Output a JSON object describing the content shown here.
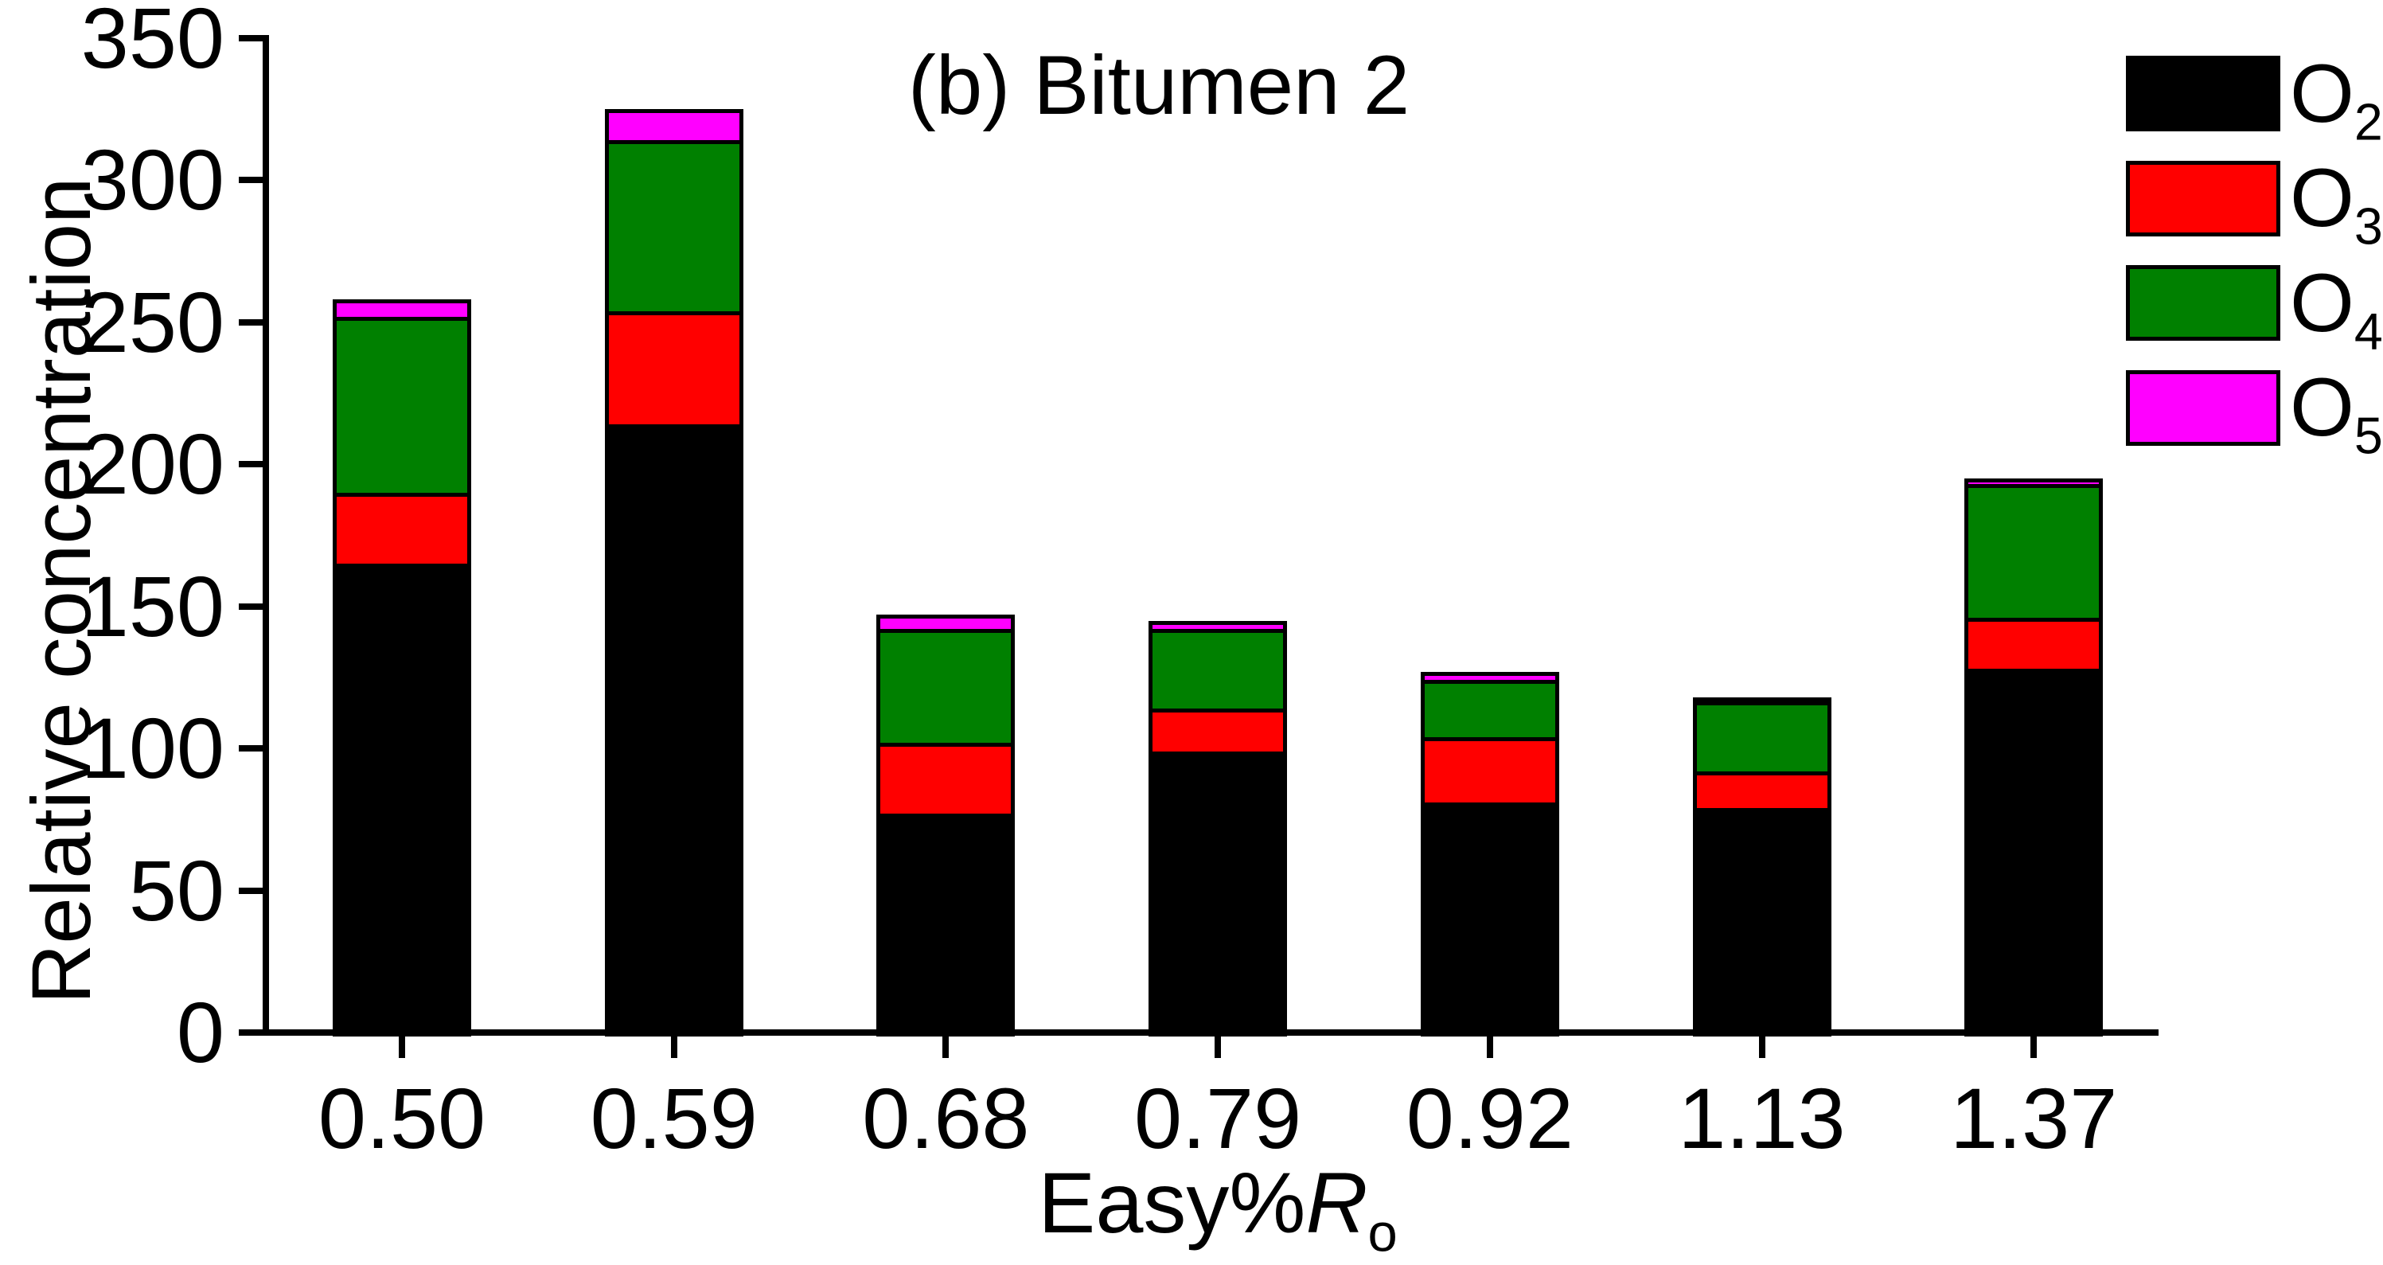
{
  "title": "(b) Bitumen 2",
  "y_axis": {
    "label": "Relative concentration"
  },
  "x_axis": {
    "prefix": "Easy%",
    "r_symbol": "R",
    "r_subscript": "o"
  },
  "chart_data": {
    "type": "bar",
    "stacked": true,
    "title": "(b) Bitumen 2",
    "xlabel": "Easy%Ro",
    "ylabel": "Relative concentration",
    "ylim": [
      0,
      350
    ],
    "yticks": [
      0,
      50,
      100,
      150,
      200,
      250,
      300,
      350
    ],
    "grid": false,
    "legend_position": "top-right",
    "categories": [
      "0.50",
      "0.59",
      "0.68",
      "0.79",
      "0.92",
      "1.13",
      "1.37"
    ],
    "series": [
      {
        "name": "O2",
        "label_base": "O",
        "label_sub": "2",
        "color": "#000000",
        "values": [
          165,
          214,
          77,
          99,
          81,
          79,
          128
        ]
      },
      {
        "name": "O3",
        "label_base": "O",
        "label_sub": "3",
        "color": "#ff0000",
        "values": [
          25,
          40,
          25,
          15,
          23,
          13,
          18
        ]
      },
      {
        "name": "O4",
        "label_base": "O",
        "label_sub": "4",
        "color": "#008000",
        "values": [
          62,
          60,
          40,
          28,
          20,
          25,
          47
        ]
      },
      {
        "name": "O5",
        "label_base": "O",
        "label_sub": "5",
        "color": "#ff00ff",
        "values": [
          6,
          11,
          5,
          3,
          3,
          1,
          2
        ]
      }
    ]
  }
}
